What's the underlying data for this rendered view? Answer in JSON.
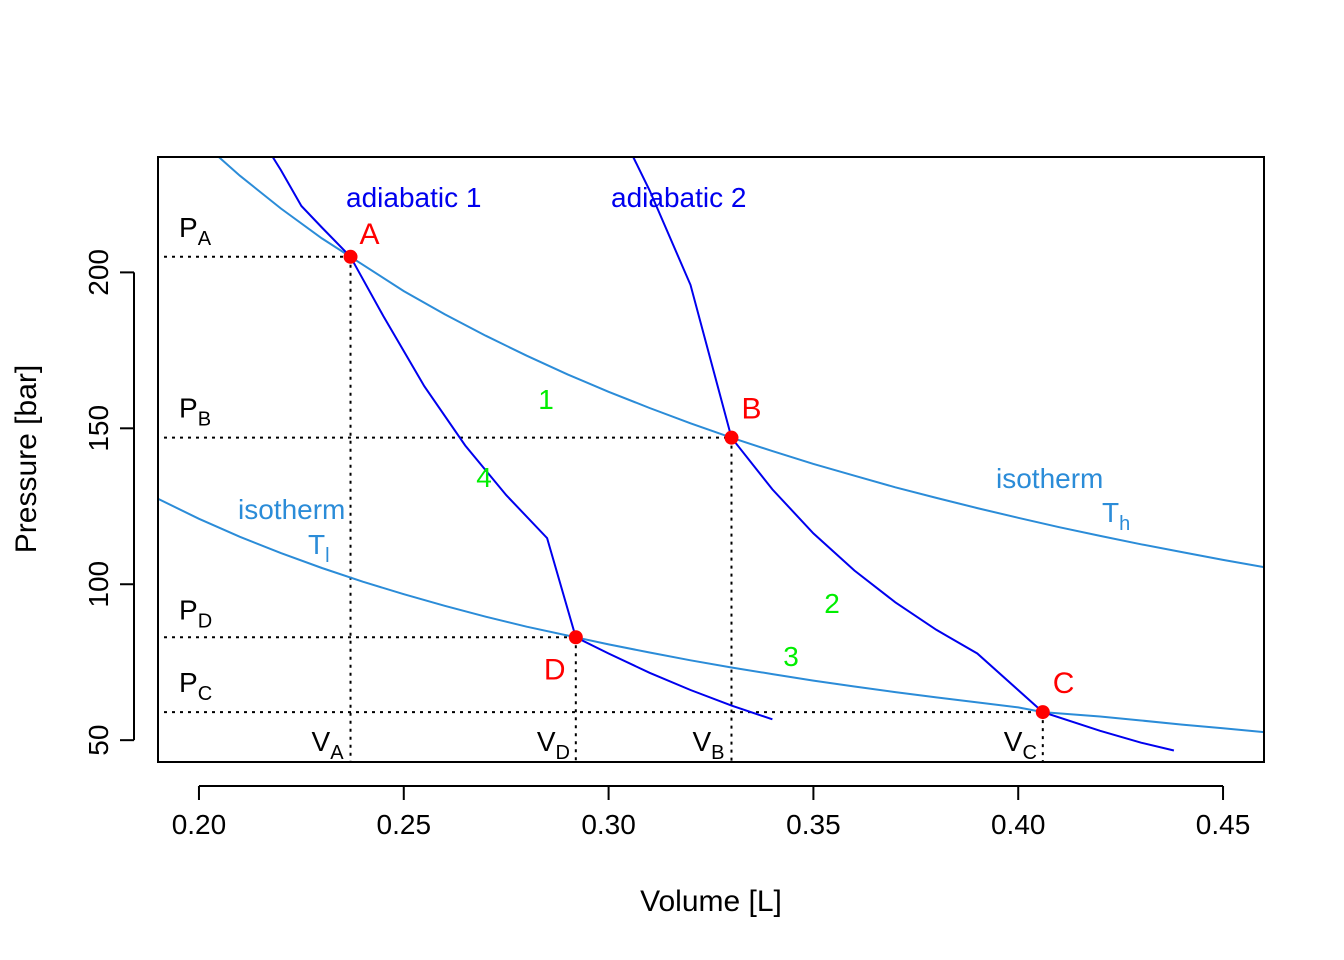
{
  "chart_data": {
    "type": "line",
    "title": "",
    "xlabel": "Volume [L]",
    "ylabel": "Pressure [bar]",
    "xlim": [
      0.19,
      0.46
    ],
    "ylim": [
      43,
      237
    ],
    "x_ticks": [
      0.2,
      0.25,
      0.3,
      0.35,
      0.4,
      0.45
    ],
    "x_tick_labels": [
      "0.20",
      "0.25",
      "0.30",
      "0.35",
      "0.40",
      "0.45"
    ],
    "y_ticks": [
      50,
      100,
      150,
      200
    ],
    "y_tick_labels": [
      "50",
      "100",
      "150",
      "200"
    ],
    "grid": false,
    "series": [
      {
        "name": "isotherm Th",
        "color": "#2B8CD8",
        "x": [
          0.19,
          0.2,
          0.21,
          0.22,
          0.23,
          0.237,
          0.25,
          0.26,
          0.27,
          0.28,
          0.29,
          0.3,
          0.31,
          0.32,
          0.33,
          0.34,
          0.35,
          0.36,
          0.37,
          0.38,
          0.39,
          0.4,
          0.41,
          0.42,
          0.43,
          0.44,
          0.45,
          0.46
        ],
        "y": [
          255.3,
          242.6,
          231.0,
          220.5,
          210.9,
          205.0,
          194.0,
          186.6,
          179.7,
          173.3,
          167.3,
          161.7,
          156.5,
          151.6,
          147.0,
          142.7,
          138.6,
          134.8,
          131.1,
          127.7,
          124.4,
          121.3,
          118.3,
          115.5,
          112.8,
          110.3,
          107.8,
          105.5
        ]
      },
      {
        "name": "isotherm Tl",
        "color": "#2B8CD8",
        "x": [
          0.19,
          0.2,
          0.21,
          0.22,
          0.23,
          0.24,
          0.25,
          0.26,
          0.27,
          0.28,
          0.292,
          0.3,
          0.31,
          0.32,
          0.33,
          0.34,
          0.35,
          0.36,
          0.37,
          0.38,
          0.39,
          0.4,
          0.406,
          0.42,
          0.43,
          0.44,
          0.45,
          0.46
        ],
        "y": [
          127.4,
          121.0,
          115.2,
          110.0,
          105.2,
          100.8,
          96.8,
          93.1,
          89.6,
          86.4,
          83.0,
          80.7,
          78.1,
          75.6,
          73.3,
          71.2,
          69.1,
          67.2,
          65.4,
          63.7,
          62.1,
          60.5,
          59.0,
          57.6,
          56.3,
          55.0,
          53.8,
          52.6
        ]
      },
      {
        "name": "adiabatic 1",
        "color": "#0000EE",
        "x": [
          0.218,
          0.22,
          0.225,
          0.23,
          0.237,
          0.245,
          0.255,
          0.265,
          0.275,
          0.285,
          0.292,
          0.3,
          0.31,
          0.32,
          0.33,
          0.34
        ],
        "y": [
          237.0,
          232.8,
          221.3,
          214.4,
          205.0,
          186.0,
          163.5,
          144.5,
          128.6,
          114.8,
          83.0,
          77.8,
          71.6,
          66.1,
          61.1,
          56.7
        ]
      },
      {
        "name": "adiabatic 2",
        "color": "#0000EE",
        "x": [
          0.306,
          0.31,
          0.32,
          0.33,
          0.34,
          0.35,
          0.36,
          0.37,
          0.38,
          0.39,
          0.406,
          0.42,
          0.43,
          0.438
        ],
        "y": [
          237.0,
          226.3,
          196.0,
          147.0,
          130.4,
          116.3,
          104.4,
          94.2,
          85.4,
          77.8,
          59.0,
          53.0,
          49.2,
          46.7
        ]
      }
    ],
    "points": [
      {
        "label": "A",
        "x": 0.237,
        "y": 205
      },
      {
        "label": "B",
        "x": 0.33,
        "y": 147
      },
      {
        "label": "C",
        "x": 0.406,
        "y": 59
      },
      {
        "label": "D",
        "x": 0.292,
        "y": 83
      }
    ],
    "annotations": {
      "adiabatic1": "adiabatic 1",
      "adiabatic2": "adiabatic 2",
      "isotherm_word": "isotherm",
      "T": "T",
      "Th_sub": "h",
      "Tl_sub": "l",
      "P": "P",
      "V": "V",
      "step1": "1",
      "step2": "2",
      "step3": "3",
      "step4": "4"
    },
    "colors": {
      "adiabatic": "#0000EE",
      "isotherm": "#2B8CD8",
      "state_point": "#FF0000",
      "step_number": "#00EE00",
      "guide": "#000000"
    }
  }
}
